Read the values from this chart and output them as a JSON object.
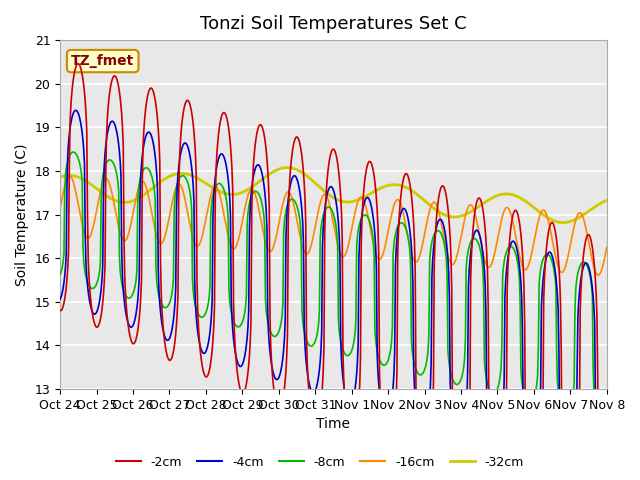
{
  "title": "Tonzi Soil Temperatures Set C",
  "xlabel": "Time",
  "ylabel": "Soil Temperature (C)",
  "ylim": [
    13.0,
    21.0
  ],
  "yticks": [
    13.0,
    14.0,
    15.0,
    16.0,
    17.0,
    18.0,
    19.0,
    20.0,
    21.0
  ],
  "xtick_labels": [
    "Oct 24",
    "Oct 25",
    "Oct 26",
    "Oct 27",
    "Oct 28",
    "Oct 29",
    "Oct 30",
    "Oct 31",
    "Nov 1",
    "Nov 2",
    "Nov 3",
    "Nov 4",
    "Nov 5",
    "Nov 6",
    "Nov 7",
    "Nov 8"
  ],
  "legend_labels": [
    "-2cm",
    "-4cm",
    "-8cm",
    "-16cm",
    "-32cm"
  ],
  "legend_colors": [
    "#cc0000",
    "#0000cc",
    "#00bb00",
    "#ff8800",
    "#cccc00"
  ],
  "line_widths": [
    1.2,
    1.2,
    1.2,
    1.2,
    2.0
  ],
  "annotation_text": "TZ_fmet",
  "annotation_bg": "#ffffcc",
  "annotation_border": "#cc8800",
  "bg_color": "#e8e8e8",
  "title_fontsize": 13,
  "label_fontsize": 10,
  "tick_fontsize": 9
}
